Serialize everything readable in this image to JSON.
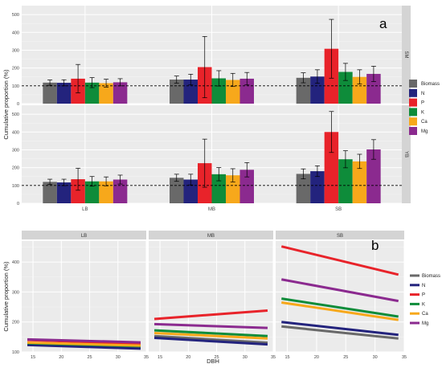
{
  "colors": {
    "Biomass": "#696969",
    "N": "#23237d",
    "P": "#e8232a",
    "K": "#0e8c3a",
    "Ca": "#f7a81b",
    "Mg": "#8b2a8f"
  },
  "legend": {
    "entries": [
      "Biomass",
      "N",
      "P",
      "K",
      "Ca",
      "Mg"
    ]
  },
  "panel_a": {
    "letter": "a",
    "ylabel": "Cumulative proportion (%)",
    "yticks": [
      "0",
      "100",
      "200",
      "300",
      "400",
      "500"
    ],
    "categories": [
      "LB",
      "MB",
      "SB"
    ],
    "facets": [
      "SM",
      "YB"
    ]
  },
  "panel_b": {
    "letter": "b",
    "ylabel": "Cumulative proportion (%)",
    "xlabel": "DBH",
    "yticks": [
      "100",
      "200",
      "300",
      "400"
    ],
    "xticks": [
      "15",
      "20",
      "25",
      "30",
      "35"
    ],
    "facets": [
      "LB",
      "MB",
      "SB"
    ]
  },
  "chart_data": [
    {
      "type": "bar",
      "panel": "a",
      "facet": "SM",
      "categories": [
        "LB",
        "MB",
        "SB"
      ],
      "ylim": [
        0,
        550
      ],
      "reference_line": 100,
      "series": [
        {
          "name": "Biomass",
          "values": [
            118,
            135,
            145
          ],
          "error": [
            15,
            20,
            28
          ]
        },
        {
          "name": "N",
          "values": [
            117,
            135,
            152
          ],
          "error": [
            17,
            30,
            38
          ]
        },
        {
          "name": "P",
          "values": [
            140,
            205,
            308
          ],
          "error": [
            80,
            172,
            165
          ]
        },
        {
          "name": "K",
          "values": [
            118,
            142,
            178
          ],
          "error": [
            28,
            43,
            48
          ]
        },
        {
          "name": "Ca",
          "values": [
            115,
            133,
            150
          ],
          "error": [
            22,
            37,
            40
          ]
        },
        {
          "name": "Mg",
          "values": [
            120,
            140,
            167
          ],
          "error": [
            20,
            35,
            43
          ]
        }
      ]
    },
    {
      "type": "bar",
      "panel": "a",
      "facet": "YB",
      "categories": [
        "LB",
        "MB",
        "SB"
      ],
      "ylim": [
        0,
        550
      ],
      "reference_line": 100,
      "series": [
        {
          "name": "Biomass",
          "values": [
            120,
            143,
            165
          ],
          "error": [
            15,
            20,
            28
          ]
        },
        {
          "name": "N",
          "values": [
            117,
            133,
            180
          ],
          "error": [
            18,
            30,
            30
          ]
        },
        {
          "name": "P",
          "values": [
            135,
            225,
            400
          ],
          "error": [
            62,
            135,
            115
          ]
        },
        {
          "name": "K",
          "values": [
            123,
            163,
            247
          ],
          "error": [
            27,
            37,
            48
          ]
        },
        {
          "name": "Ca",
          "values": [
            123,
            157,
            235
          ],
          "error": [
            25,
            37,
            40
          ]
        },
        {
          "name": "Mg",
          "values": [
            133,
            188,
            302
          ],
          "error": [
            25,
            40,
            55
          ]
        }
      ]
    },
    {
      "type": "line",
      "panel": "b",
      "facet": "LB",
      "xlim": [
        13,
        35
      ],
      "ylim": [
        100,
        470
      ],
      "series": [
        {
          "name": "Biomass",
          "x": [
            14,
            34
          ],
          "y": [
            124,
            113
          ]
        },
        {
          "name": "N",
          "x": [
            14,
            34
          ],
          "y": [
            123,
            111
          ]
        },
        {
          "name": "P",
          "x": [
            14,
            34
          ],
          "y": [
            140,
            127
          ]
        },
        {
          "name": "K",
          "x": [
            14,
            34
          ],
          "y": [
            129,
            119
          ]
        },
        {
          "name": "Ca",
          "x": [
            14,
            34
          ],
          "y": [
            131,
            121
          ]
        },
        {
          "name": "Mg",
          "x": [
            14,
            34
          ],
          "y": [
            142,
            132
          ]
        }
      ]
    },
    {
      "type": "line",
      "panel": "b",
      "facet": "MB",
      "xlim": [
        13,
        35
      ],
      "ylim": [
        100,
        470
      ],
      "series": [
        {
          "name": "Biomass",
          "x": [
            14,
            34
          ],
          "y": [
            153,
            131
          ]
        },
        {
          "name": "N",
          "x": [
            14,
            34
          ],
          "y": [
            147,
            125
          ]
        },
        {
          "name": "P",
          "x": [
            14,
            34
          ],
          "y": [
            210,
            238
          ]
        },
        {
          "name": "K",
          "x": [
            14,
            34
          ],
          "y": [
            172,
            153
          ]
        },
        {
          "name": "Ca",
          "x": [
            14,
            34
          ],
          "y": [
            163,
            145
          ]
        },
        {
          "name": "Mg",
          "x": [
            14,
            34
          ],
          "y": [
            193,
            180
          ]
        }
      ]
    },
    {
      "type": "line",
      "panel": "b",
      "facet": "SB",
      "xlim": [
        13,
        35
      ],
      "ylim": [
        100,
        470
      ],
      "series": [
        {
          "name": "Biomass",
          "x": [
            14,
            34
          ],
          "y": [
            185,
            145
          ]
        },
        {
          "name": "N",
          "x": [
            14,
            34
          ],
          "y": [
            200,
            157
          ]
        },
        {
          "name": "P",
          "x": [
            14,
            34
          ],
          "y": [
            452,
            358
          ]
        },
        {
          "name": "K",
          "x": [
            14,
            34
          ],
          "y": [
            278,
            218
          ]
        },
        {
          "name": "Ca",
          "x": [
            14,
            34
          ],
          "y": [
            265,
            207
          ]
        },
        {
          "name": "Mg",
          "x": [
            14,
            34
          ],
          "y": [
            342,
            270
          ]
        }
      ]
    }
  ]
}
